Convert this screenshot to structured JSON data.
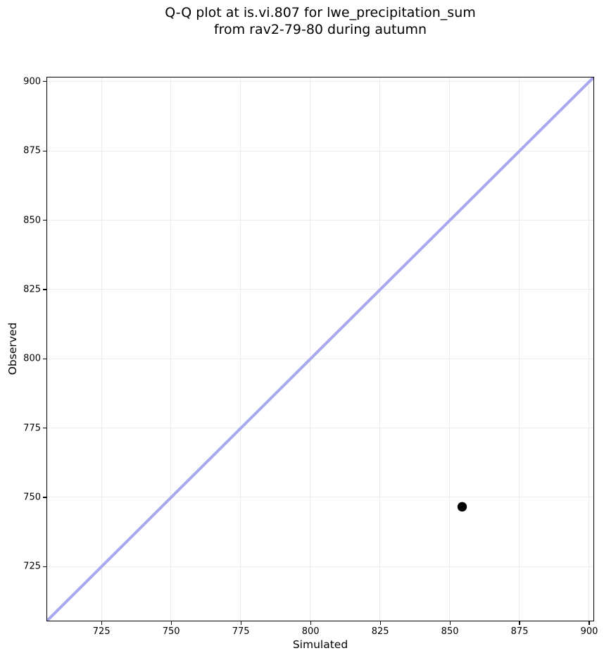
{
  "chart_data": {
    "type": "scatter",
    "title": "Q-Q plot at is.vi.807 for lwe_precipitation_sum from rav2-79-80 during autumn",
    "title_lines": [
      "Q-Q plot at is.vi.807 for lwe_precipitation_sum",
      "from rav2-79-80 during autumn"
    ],
    "xlabel": "Simulated",
    "ylabel": "Observed",
    "xlim": [
      705.5,
      901.5
    ],
    "ylim": [
      705.5,
      901.5
    ],
    "xticks": [
      725,
      750,
      775,
      800,
      825,
      850,
      875,
      900
    ],
    "yticks": [
      725,
      750,
      775,
      800,
      825,
      850,
      875,
      900
    ],
    "grid": true,
    "legend": false,
    "points": [
      {
        "x": 854.4,
        "y": 746.6
      }
    ],
    "marker": "circle",
    "point_radius": 6.7,
    "identity_line": {
      "x1": 705.5,
      "y1": 705.5,
      "x2": 901.5,
      "y2": 901.5,
      "stroke_width": 4
    },
    "colors": {
      "identity_line": "#a8a8ee",
      "point": "#000000",
      "grid": "#ececec",
      "frame": "#000000",
      "background": "#ffffff"
    }
  }
}
